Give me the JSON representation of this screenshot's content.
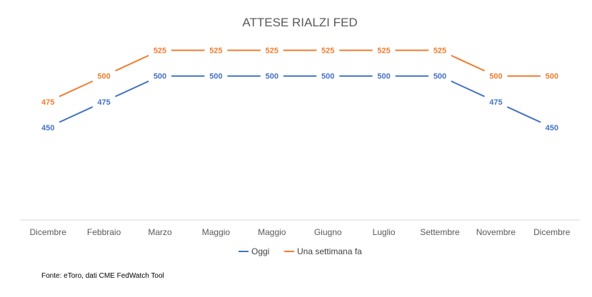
{
  "chart_data": {
    "type": "line",
    "title": "ATTESE RIALZI FED",
    "categories": [
      "Dicembre",
      "Febbraio",
      "Marzo",
      "Maggio",
      "Maggio",
      "Giugno",
      "Luglio",
      "Settembre",
      "Novembre",
      "Dicembre"
    ],
    "series": [
      {
        "name": "Oggi",
        "color": "#4472C4",
        "values": [
          450,
          475,
          500,
          500,
          500,
          500,
          500,
          500,
          475,
          450
        ]
      },
      {
        "name": "Una settimana fa",
        "color": "#ED7D31",
        "values": [
          475,
          500,
          525,
          525,
          525,
          525,
          525,
          525,
          500,
          500
        ]
      }
    ],
    "ylim": [
      360,
      560
    ],
    "grid": false,
    "legend_position": "bottom"
  },
  "source": "Fonte: eToro, dati CME FedWatch Tool"
}
